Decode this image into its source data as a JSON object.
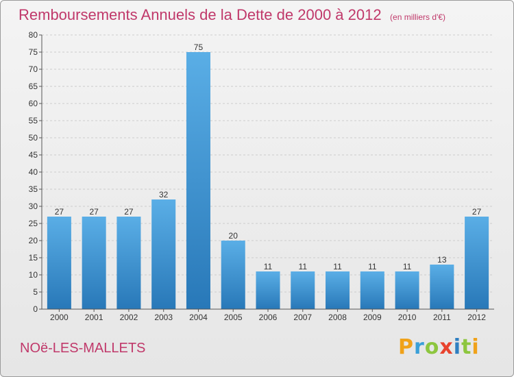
{
  "title": "Remboursements Annuels de la Dette de 2000 à 2012",
  "subtitle": "(en milliers d'€)",
  "commune": "NOë-LES-MALLETS",
  "logo": {
    "letters": [
      "P",
      "r",
      "o",
      "x",
      "i",
      "t",
      "i"
    ]
  },
  "colors": {
    "title": "#c0386a",
    "bar_top": "#5aaee6",
    "bar_bottom": "#2878b8",
    "grid": "#cccccc",
    "axis": "#555555"
  },
  "chart_data": {
    "type": "bar",
    "categories": [
      "2000",
      "2001",
      "2002",
      "2003",
      "2004",
      "2005",
      "2006",
      "2007",
      "2008",
      "2009",
      "2010",
      "2011",
      "2012"
    ],
    "values": [
      27,
      27,
      27,
      32,
      75,
      20,
      11,
      11,
      11,
      11,
      11,
      13,
      27
    ],
    "ylim": [
      0,
      80
    ],
    "yticks": [
      0,
      5,
      10,
      15,
      20,
      25,
      30,
      35,
      40,
      45,
      50,
      55,
      60,
      65,
      70,
      75,
      80
    ],
    "grid": true,
    "data_labels": true
  }
}
